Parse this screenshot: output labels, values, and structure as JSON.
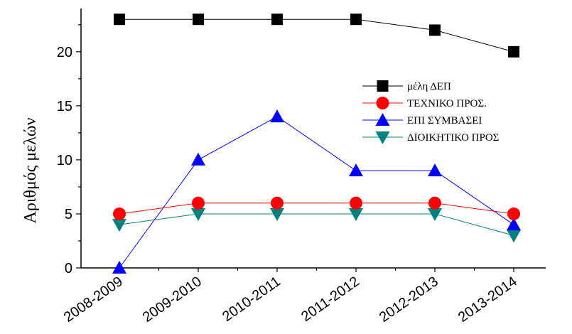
{
  "chart_data": {
    "type": "line",
    "title": "",
    "xlabel": "",
    "ylabel": "Αριθμός μελών",
    "categories": [
      "2008-2009",
      "2009-2010",
      "2010-2011",
      "2011-2012",
      "2012-2013",
      "2013-2014"
    ],
    "ylim": [
      0,
      24
    ],
    "yticks": [
      0,
      5,
      10,
      15,
      20
    ],
    "grid": false,
    "legend_position": "right",
    "series": [
      {
        "name": "μέλη ΔΕΠ",
        "marker": "square",
        "color": "#000000",
        "values": [
          23,
          23,
          23,
          23,
          22,
          20
        ]
      },
      {
        "name": "ΤΕΧΝΙΚΟ ΠΡΟΣ.",
        "marker": "circle",
        "color": "#ff0000",
        "values": [
          5,
          6,
          6,
          6,
          6,
          5
        ]
      },
      {
        "name": "ΕΠΙ ΣΥΜΒΑΣΕΙ",
        "marker": "triangle-up",
        "color": "#0000ff",
        "values": [
          0,
          10,
          14,
          9,
          9,
          4
        ]
      },
      {
        "name": "ΔΙΟΙΚΗΤΙΚΟ ΠΡΟΣ",
        "marker": "triangle-down",
        "color": "#008080",
        "values": [
          4,
          5,
          5,
          5,
          5,
          3
        ]
      }
    ]
  }
}
